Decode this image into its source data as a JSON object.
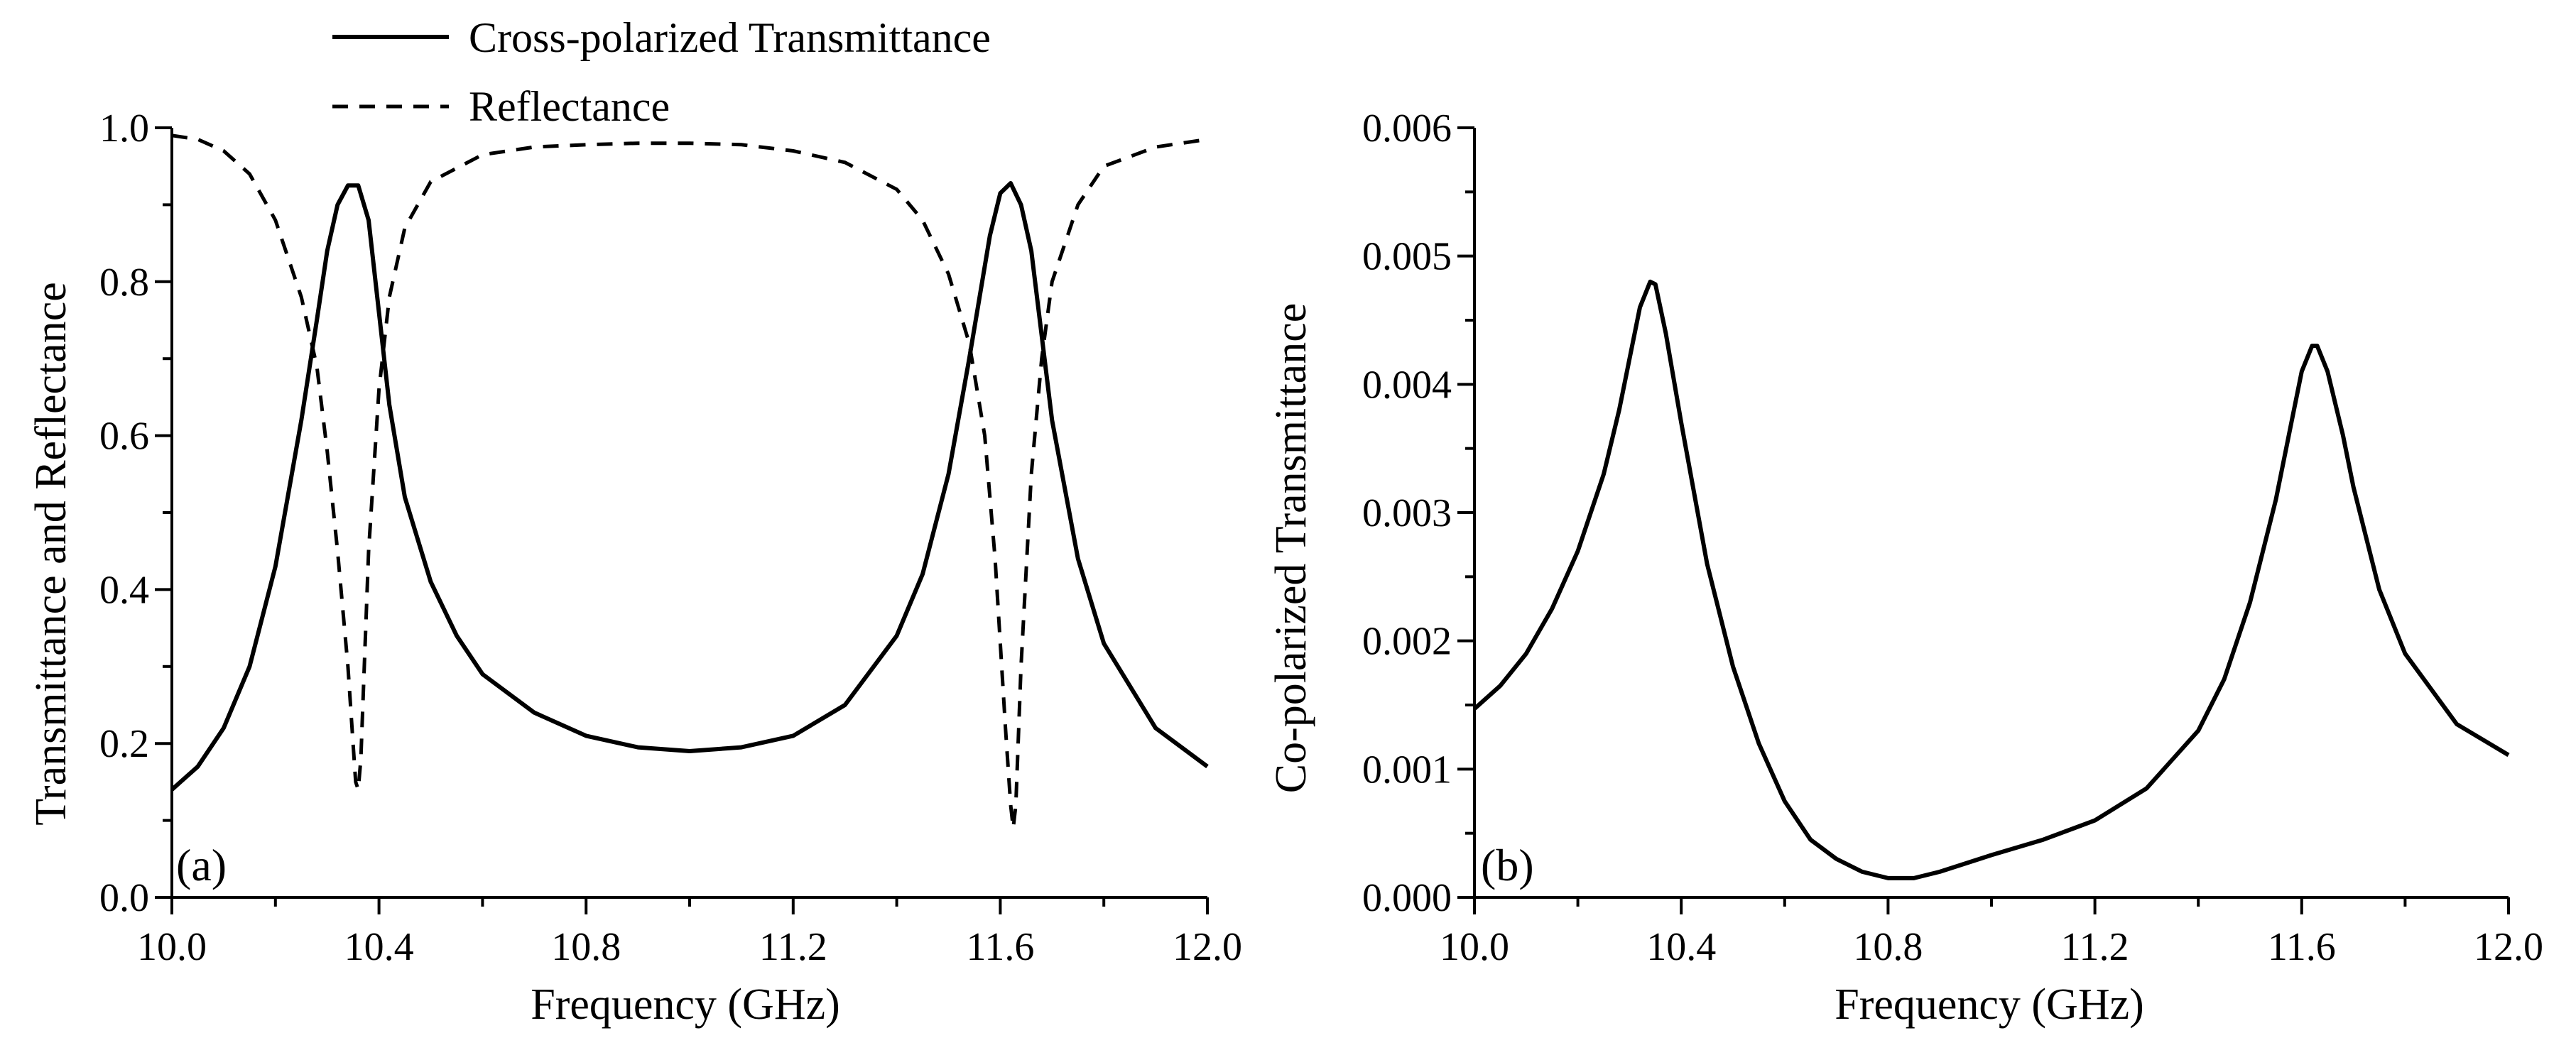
{
  "chart_data": [
    {
      "type": "line",
      "panel_label": "(a)",
      "xlabel": "Frequency (GHz)",
      "ylabel": "Transmittance and Reflectance",
      "xlim": [
        10.0,
        12.0
      ],
      "ylim": [
        0.0,
        1.0
      ],
      "xticks": [
        10.0,
        10.4,
        10.8,
        11.2,
        11.6,
        12.0
      ],
      "xtick_labels": [
        "10.0",
        "10.4",
        "10.8",
        "11.2",
        "11.6",
        "12.0"
      ],
      "yticks": [
        0.0,
        0.2,
        0.4,
        0.6,
        0.8,
        1.0
      ],
      "ytick_labels": [
        "0.0",
        "0.2",
        "0.4",
        "0.6",
        "0.8",
        "1.0"
      ],
      "legend_position": "top-center",
      "series": [
        {
          "name": "Cross-polarized Transmittance",
          "style": "solid",
          "x": [
            10.0,
            10.05,
            10.1,
            10.15,
            10.2,
            10.25,
            10.28,
            10.3,
            10.32,
            10.34,
            10.36,
            10.38,
            10.4,
            10.42,
            10.45,
            10.5,
            10.55,
            10.6,
            10.7,
            10.8,
            10.9,
            11.0,
            11.1,
            11.2,
            11.3,
            11.4,
            11.45,
            11.5,
            11.54,
            11.58,
            11.6,
            11.62,
            11.64,
            11.66,
            11.7,
            11.75,
            11.8,
            11.9,
            12.0
          ],
          "y": [
            0.14,
            0.17,
            0.22,
            0.3,
            0.43,
            0.62,
            0.75,
            0.84,
            0.9,
            0.925,
            0.925,
            0.88,
            0.76,
            0.64,
            0.52,
            0.41,
            0.34,
            0.29,
            0.24,
            0.21,
            0.195,
            0.19,
            0.195,
            0.21,
            0.25,
            0.34,
            0.42,
            0.55,
            0.7,
            0.86,
            0.915,
            0.928,
            0.9,
            0.84,
            0.62,
            0.44,
            0.33,
            0.22,
            0.17
          ]
        },
        {
          "name": "Reflectance",
          "style": "dashed",
          "x": [
            10.0,
            10.05,
            10.1,
            10.15,
            10.2,
            10.25,
            10.28,
            10.3,
            10.32,
            10.34,
            10.35,
            10.355,
            10.36,
            10.365,
            10.37,
            10.38,
            10.4,
            10.42,
            10.45,
            10.5,
            10.6,
            10.7,
            10.8,
            10.9,
            11.0,
            11.1,
            11.2,
            11.3,
            11.4,
            11.45,
            11.5,
            11.54,
            11.57,
            11.59,
            11.61,
            11.62,
            11.625,
            11.63,
            11.64,
            11.66,
            11.68,
            11.7,
            11.75,
            11.8,
            11.9,
            12.0
          ],
          "y": [
            0.99,
            0.985,
            0.97,
            0.94,
            0.88,
            0.78,
            0.69,
            0.58,
            0.45,
            0.3,
            0.2,
            0.15,
            0.14,
            0.18,
            0.27,
            0.45,
            0.66,
            0.78,
            0.87,
            0.93,
            0.965,
            0.975,
            0.978,
            0.98,
            0.98,
            0.978,
            0.97,
            0.955,
            0.92,
            0.88,
            0.81,
            0.72,
            0.6,
            0.44,
            0.22,
            0.12,
            0.09,
            0.12,
            0.3,
            0.55,
            0.7,
            0.8,
            0.9,
            0.95,
            0.975,
            0.985
          ]
        }
      ]
    },
    {
      "type": "line",
      "panel_label": "(b)",
      "xlabel": "Frequency (GHz)",
      "ylabel": "Co-polarized Transmittance",
      "xlim": [
        10.0,
        12.0
      ],
      "ylim": [
        0.0,
        0.006
      ],
      "xticks": [
        10.0,
        10.4,
        10.8,
        11.2,
        11.6,
        12.0
      ],
      "xtick_labels": [
        "10.0",
        "10.4",
        "10.8",
        "11.2",
        "11.6",
        "12.0"
      ],
      "yticks": [
        0.0,
        0.001,
        0.002,
        0.003,
        0.004,
        0.005,
        0.006
      ],
      "ytick_labels": [
        "0.000",
        "0.001",
        "0.002",
        "0.003",
        "0.004",
        "0.005",
        "0.006"
      ],
      "series": [
        {
          "name": "Co-polarized Transmittance",
          "style": "solid",
          "x": [
            10.0,
            10.05,
            10.1,
            10.15,
            10.2,
            10.25,
            10.28,
            10.3,
            10.32,
            10.34,
            10.35,
            10.37,
            10.4,
            10.45,
            10.5,
            10.55,
            10.6,
            10.65,
            10.7,
            10.75,
            10.8,
            10.85,
            10.9,
            11.0,
            11.1,
            11.2,
            11.3,
            11.4,
            11.45,
            11.5,
            11.55,
            11.58,
            11.6,
            11.62,
            11.63,
            11.65,
            11.68,
            11.7,
            11.75,
            11.8,
            11.9,
            12.0
          ],
          "y": [
            0.00147,
            0.00165,
            0.0019,
            0.00225,
            0.0027,
            0.0033,
            0.0038,
            0.0042,
            0.0046,
            0.0048,
            0.00478,
            0.0044,
            0.0037,
            0.0026,
            0.0018,
            0.0012,
            0.00075,
            0.00045,
            0.0003,
            0.0002,
            0.00015,
            0.00015,
            0.0002,
            0.00033,
            0.00045,
            0.0006,
            0.00085,
            0.0013,
            0.0017,
            0.0023,
            0.0031,
            0.0037,
            0.0041,
            0.0043,
            0.0043,
            0.0041,
            0.0036,
            0.0032,
            0.0024,
            0.0019,
            0.00135,
            0.00111
          ]
        }
      ]
    }
  ]
}
